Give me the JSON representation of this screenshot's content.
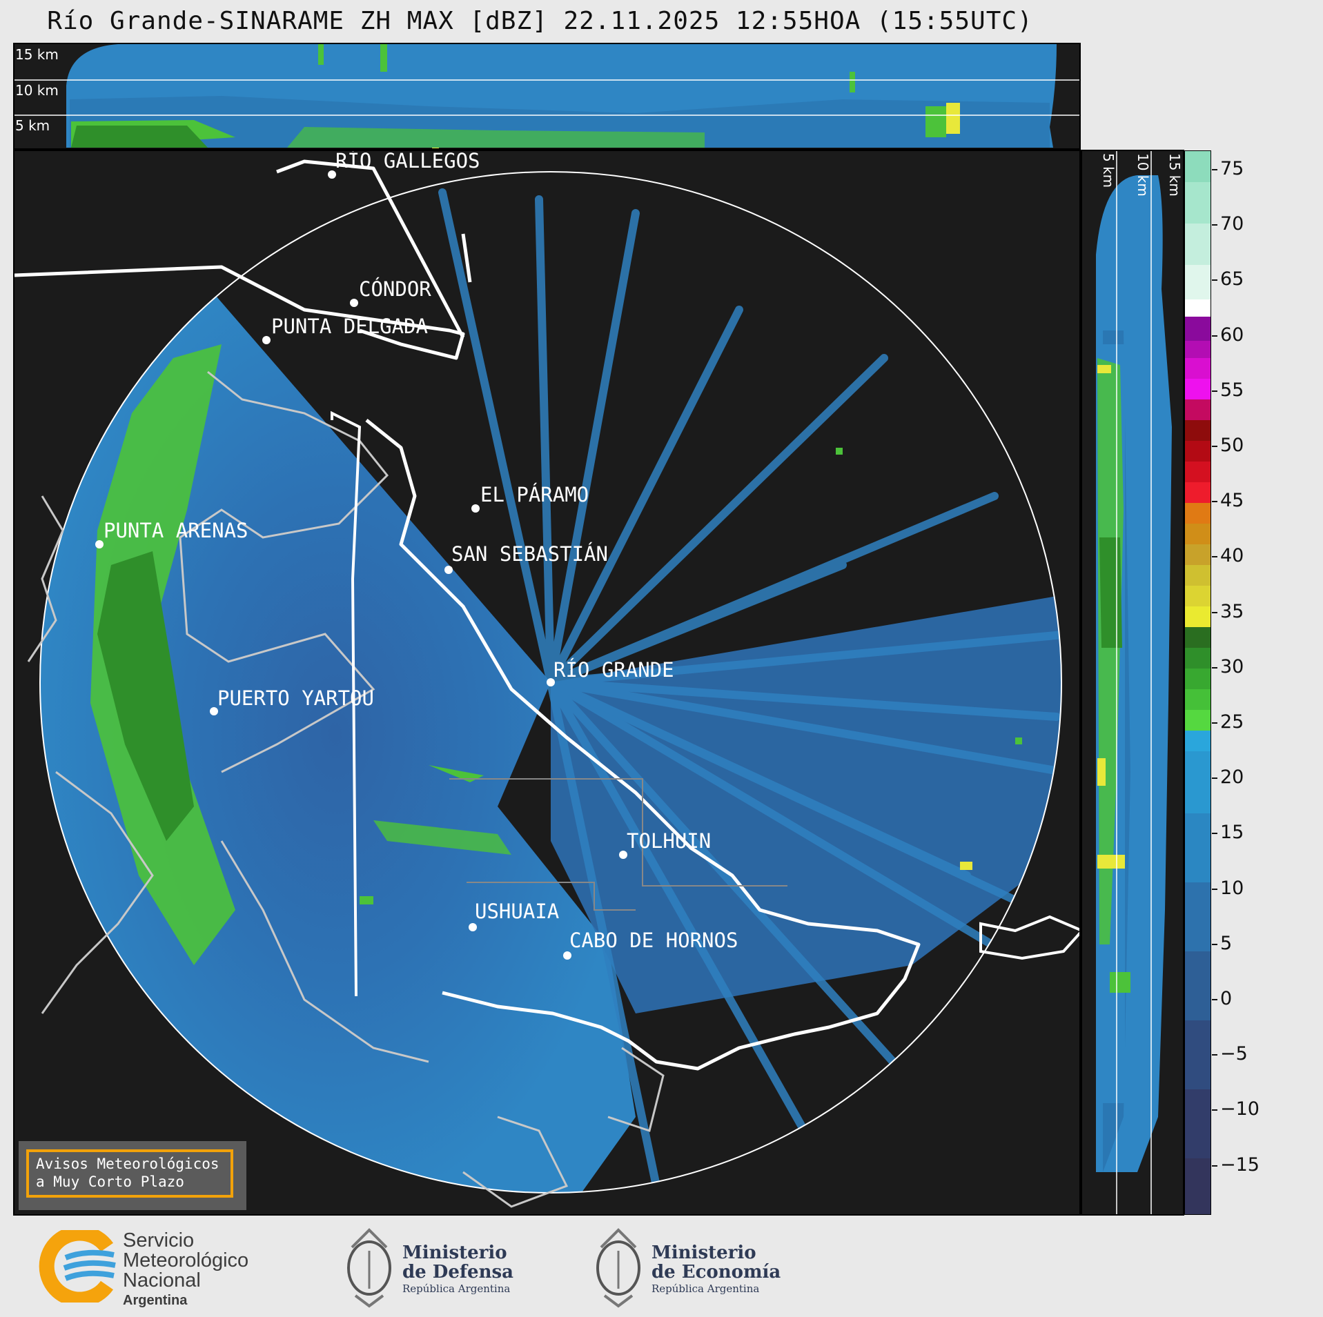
{
  "title": "Río Grande-SINARAME ZH MAX [dBZ] 22.11.2025 12:55HOA (15:55UTC)",
  "top_panel_heights": [
    "15 km",
    "10 km",
    "5 km"
  ],
  "side_panel_heights": [
    "5 km",
    "10 km",
    "15 km"
  ],
  "cities": [
    {
      "name": "RÍO GALLEGOS"
    },
    {
      "name": "CÓNDOR"
    },
    {
      "name": "PUNTA DELGADA"
    },
    {
      "name": "EL PÁRAMO"
    },
    {
      "name": "PUNTA ARENAS"
    },
    {
      "name": "SAN SEBASTIÁN"
    },
    {
      "name": "RÍO GRANDE"
    },
    {
      "name": "PUERTO YARTOU"
    },
    {
      "name": "TOLHUIN"
    },
    {
      "name": "USHUAIA"
    },
    {
      "name": "CABO DE HORNOS"
    }
  ],
  "colorbar": {
    "unit": "dBZ",
    "ticks": [
      "75",
      "70",
      "65",
      "60",
      "55",
      "50",
      "45",
      "40",
      "35",
      "30",
      "25",
      "20",
      "15",
      "10",
      "5",
      "0",
      "−5",
      "−10",
      "−15"
    ]
  },
  "colors": {
    "background": "#1b1b1b",
    "low_reflectivity": "#2f7fbf",
    "mid_reflectivity": "#4cc23a",
    "high_reflectivity": "#e8e83a",
    "warning_border": "#f2a20a"
  },
  "warning_box": {
    "line1": "Avisos Meteorológicos",
    "line2": "a Muy Corto Plazo"
  },
  "logos": {
    "smn": {
      "line1": "Servicio",
      "line2": "Meteorológico",
      "line3": "Nacional",
      "line4": "Argentina"
    },
    "defensa": {
      "line1": "Ministerio",
      "line2": "de Defensa",
      "line3": "República Argentina"
    },
    "economia": {
      "line1": "Ministerio",
      "line2": "de Economía",
      "line3": "República Argentina"
    }
  }
}
